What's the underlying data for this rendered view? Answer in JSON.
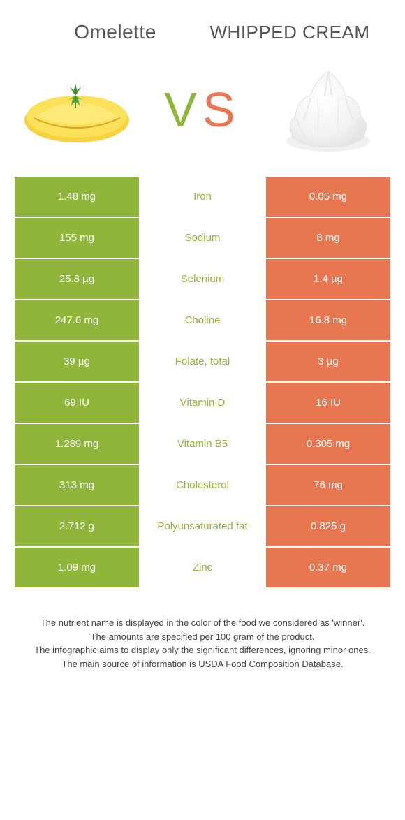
{
  "colors": {
    "green": "#8fb53a",
    "orange": "#e87651",
    "orange2": "#e87651",
    "mid_text_green": "#8fb53a",
    "mid_text_orange": "#e87651",
    "title_text": "#555555",
    "footer_text": "#444444",
    "bg": "#ffffff"
  },
  "titles": {
    "left": "Omelette",
    "right": "WHIPPED CREAM"
  },
  "vs": {
    "v": "V",
    "s": "S"
  },
  "rows": [
    {
      "left": "1.48 mg",
      "label": "Iron",
      "right": "0.05 mg",
      "winner": "left"
    },
    {
      "left": "155 mg",
      "label": "Sodium",
      "right": "8 mg",
      "winner": "left"
    },
    {
      "left": "25.8 µg",
      "label": "Selenium",
      "right": "1.4 µg",
      "winner": "left"
    },
    {
      "left": "247.6 mg",
      "label": "Choline",
      "right": "16.8 mg",
      "winner": "left"
    },
    {
      "left": "39 µg",
      "label": "Folate, total",
      "right": "3 µg",
      "winner": "left"
    },
    {
      "left": "69 IU",
      "label": "Vitamin D",
      "right": "16 IU",
      "winner": "left"
    },
    {
      "left": "1.289 mg",
      "label": "Vitamin B5",
      "right": "0.305 mg",
      "winner": "left"
    },
    {
      "left": "313 mg",
      "label": "Cholesterol",
      "right": "76 mg",
      "winner": "left"
    },
    {
      "left": "2.712 g",
      "label": "Polyunsaturated fat",
      "right": "0.825 g",
      "winner": "left"
    },
    {
      "left": "1.09 mg",
      "label": "Zinc",
      "right": "0.37 mg",
      "winner": "left"
    }
  ],
  "footer": {
    "line1": "The nutrient name is displayed in the color of the food we considered as 'winner'.",
    "line2": "The amounts are specified per 100 gram of the product.",
    "line3": "The infographic aims to display only the significant differences, ignoring minor ones.",
    "line4": "The main source of information is USDA Food Composition Database."
  }
}
